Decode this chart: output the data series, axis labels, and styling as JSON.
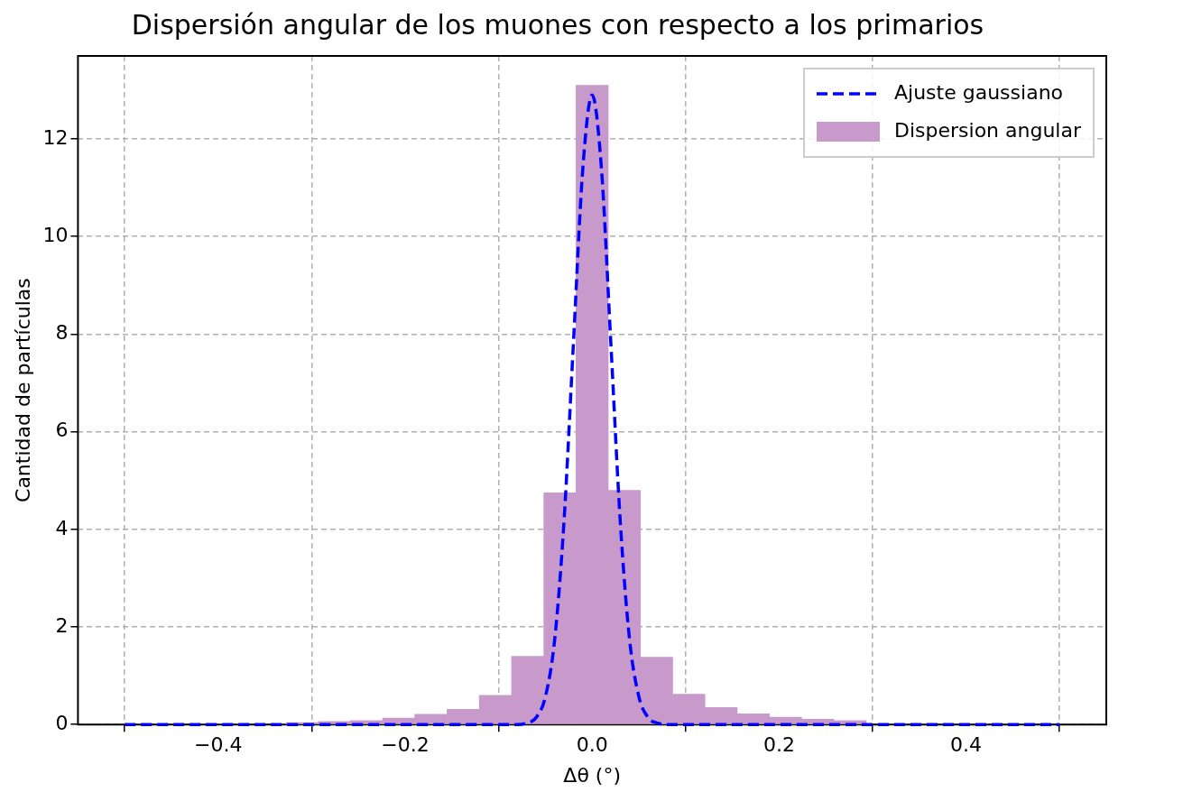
{
  "chart_data": {
    "type": "histogram",
    "title": "Dispersión angular de los muones con respecto a los primarios",
    "xlabel": "Δθ (°)",
    "ylabel": "Cantidad de partículas",
    "bins": [
      -0.5,
      -0.4655,
      -0.431,
      -0.3966,
      -0.3621,
      -0.3276,
      -0.2931,
      -0.2586,
      -0.2241,
      -0.1897,
      -0.1552,
      -0.1207,
      -0.0862,
      -0.0517,
      -0.0172,
      0.0172,
      0.0517,
      0.0862,
      0.1207,
      0.1552,
      0.1897,
      0.2241,
      0.2586,
      0.2931,
      0.3276,
      0.3621,
      0.3966,
      0.431,
      0.4655,
      0.5
    ],
    "series": [
      {
        "name": "Ajuste gaussiano",
        "type": "line",
        "line_style": "dashed",
        "color": "#0000ff",
        "x": [
          -0.5,
          -0.1,
          -0.08,
          -0.07,
          -0.06,
          -0.05,
          -0.04,
          -0.03,
          -0.02,
          -0.01,
          0,
          0.01,
          0.02,
          0.03,
          0.04,
          0.05,
          0.06,
          0.07,
          0.08,
          0.1,
          0.5
        ],
        "values": [
          0,
          0,
          0,
          0.03,
          0.14,
          0.57,
          1.75,
          4.19,
          7.82,
          11.38,
          12.9,
          11.38,
          7.82,
          4.19,
          1.75,
          0.57,
          0.14,
          0.03,
          0,
          0,
          0
        ]
      },
      {
        "name": "Dispersion angular",
        "color": "#c899cb",
        "values": [
          null,
          null,
          null,
          null,
          null,
          0.04,
          0.06,
          0.08,
          0.13,
          0.21,
          0.31,
          0.6,
          1.4,
          4.75,
          13.1,
          4.8,
          1.38,
          0.62,
          0.35,
          0.22,
          0.15,
          0.11,
          0.08,
          null,
          null,
          null,
          null,
          null,
          null
        ]
      }
    ],
    "xlim": [
      -0.55,
      0.55
    ],
    "xticks": [
      {
        "value": -0.4,
        "label": "−0.4"
      },
      {
        "value": -0.2,
        "label": "−0.2"
      },
      {
        "value": 0,
        "label": "0.0"
      },
      0.2,
      0.4
    ],
    "ylim": [
      0,
      13.7
    ],
    "yticks": [
      0,
      2,
      4,
      6,
      8,
      10,
      12
    ],
    "grid": true,
    "legend": "top right"
  }
}
